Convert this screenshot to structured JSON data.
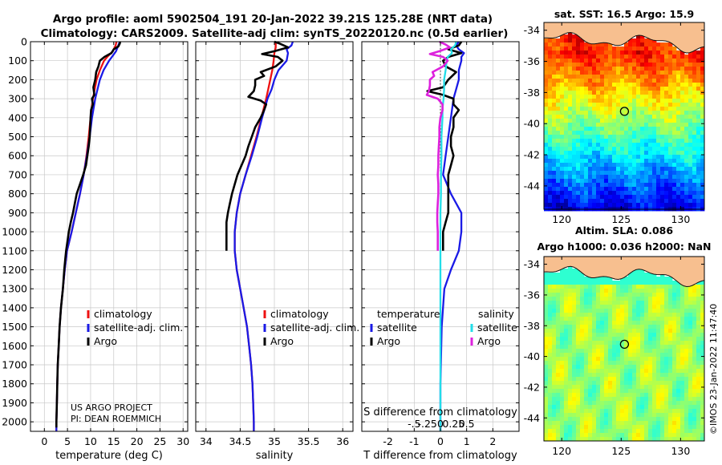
{
  "titles": {
    "line1": "Argo profile: aoml 5902504_191 20-Jan-2022 39.21S 125.28E (NRT data)",
    "line2": "Climatology: CARS2009. Satellite-adj clim: synTS_20220120.nc (0.5d earlier)"
  },
  "credit": {
    "project": "US ARGO PROJECT",
    "pi": "PI: DEAN ROEMMICH",
    "imos": "©IMOS 23-Jan-2022 11:47:40"
  },
  "colors": {
    "climatology": "#ee1111",
    "satellite": "#1a1ae6",
    "argo": "#000000",
    "sat_salinity": "#22dde8",
    "argo_salinity": "#dd22dd"
  },
  "depth_ticks": [
    0,
    100,
    200,
    300,
    400,
    500,
    600,
    700,
    800,
    900,
    1000,
    1100,
    1200,
    1300,
    1400,
    1500,
    1600,
    1700,
    1800,
    1900,
    2000
  ],
  "chart_data": [
    {
      "type": "line",
      "id": "temperature",
      "xlabel": "temperature (deg C)",
      "ylabel": "depth",
      "xlim": [
        -3,
        31
      ],
      "ylim": [
        2050,
        0
      ],
      "xticks": [
        0,
        5,
        10,
        15,
        20,
        25,
        30
      ],
      "legend": [
        "climatology",
        "satellite-adj. clim.",
        "Argo"
      ],
      "series": [
        {
          "name": "climatology",
          "color_key": "climatology",
          "depth": [
            0,
            20,
            50,
            80,
            100,
            150,
            200,
            300,
            400,
            500,
            600,
            700,
            800,
            900,
            1000,
            1100,
            1200,
            1300,
            1400,
            1500,
            1600,
            1700,
            1800,
            1900,
            2000,
            2050
          ],
          "values": [
            15.6,
            15.4,
            14.8,
            13.6,
            12.9,
            12.0,
            11.3,
            10.5,
            10.0,
            9.6,
            9.1,
            8.5,
            7.7,
            6.8,
            5.9,
            4.9,
            4.4,
            4.0,
            3.6,
            3.3,
            3.1,
            2.9,
            2.8,
            2.7,
            2.6,
            2.6
          ]
        },
        {
          "name": "satellite-adj. clim.",
          "color_key": "satellite",
          "depth": [
            0,
            20,
            50,
            80,
            100,
            150,
            200,
            300,
            400,
            500,
            600,
            700,
            800,
            900,
            1000,
            1100,
            1200,
            1300,
            1400,
            1500,
            1600,
            1700,
            1800,
            1900,
            2000,
            2050
          ],
          "values": [
            16.3,
            16.0,
            15.5,
            14.6,
            14.0,
            12.8,
            12.0,
            11.0,
            10.3,
            9.8,
            9.2,
            8.5,
            7.7,
            6.8,
            5.9,
            4.9,
            4.4,
            4.0,
            3.6,
            3.3,
            3.1,
            2.9,
            2.8,
            2.7,
            2.6,
            2.6
          ]
        },
        {
          "name": "Argo",
          "color_key": "argo",
          "depth": [
            0,
            10,
            25,
            40,
            60,
            80,
            100,
            130,
            160,
            200,
            240,
            280,
            300,
            330,
            360,
            400,
            450,
            500,
            550,
            600,
            650,
            700,
            750,
            800,
            850,
            900,
            950,
            1000,
            1050,
            1100,
            1150,
            1200,
            1300,
            1400,
            1500,
            1600,
            1700,
            1800,
            1900,
            2000,
            2030
          ],
          "values": [
            16.4,
            16.3,
            16.0,
            15.0,
            14.5,
            13.0,
            12.0,
            11.7,
            11.2,
            11.0,
            10.6,
            10.8,
            10.3,
            10.5,
            10.1,
            10.0,
            9.9,
            9.8,
            9.6,
            9.3,
            9.0,
            8.4,
            7.7,
            7.0,
            6.6,
            6.2,
            5.7,
            5.3,
            5.0,
            4.7,
            4.5,
            4.3,
            4.0,
            3.6,
            3.3,
            3.1,
            2.9,
            2.8,
            2.7,
            2.6,
            2.6
          ]
        }
      ]
    },
    {
      "type": "line",
      "id": "salinity",
      "xlabel": "salinity",
      "ylabel": "depth",
      "xlim": [
        33.85,
        36.15
      ],
      "ylim": [
        2050,
        0
      ],
      "xticks": [
        34,
        34.5,
        35,
        35.5,
        36
      ],
      "legend": [
        "climatology",
        "satellite-adj. clim.",
        "Argo"
      ],
      "series": [
        {
          "name": "climatology",
          "color_key": "climatology",
          "depth": [
            0,
            30,
            60,
            100,
            150,
            200,
            300,
            400,
            500,
            600,
            700,
            800,
            900,
            1000,
            1100,
            1200,
            1300,
            1400,
            1500,
            1600,
            1700,
            1800,
            1900,
            2000,
            2050
          ],
          "values": [
            35.02,
            35.02,
            35.0,
            34.99,
            34.97,
            34.94,
            34.88,
            34.81,
            34.74,
            34.66,
            34.58,
            34.5,
            34.45,
            34.42,
            34.42,
            34.45,
            34.5,
            34.55,
            34.6,
            34.63,
            34.66,
            34.68,
            34.69,
            34.7,
            34.7
          ]
        },
        {
          "name": "satellite-adj. clim.",
          "color_key": "satellite",
          "depth": [
            0,
            20,
            40,
            60,
            100,
            150,
            200,
            250,
            300,
            400,
            500,
            600,
            700,
            800,
            900,
            1000,
            1100,
            1200,
            1300,
            1400,
            1500,
            1600,
            1700,
            1800,
            1900,
            2000,
            2050
          ],
          "values": [
            35.27,
            35.25,
            35.18,
            35.2,
            35.18,
            35.06,
            35.0,
            34.96,
            34.9,
            34.82,
            34.75,
            34.67,
            34.58,
            34.5,
            34.45,
            34.42,
            34.42,
            34.45,
            34.5,
            34.55,
            34.6,
            34.63,
            34.66,
            34.68,
            34.69,
            34.7,
            34.7
          ]
        },
        {
          "name": "Argo",
          "color_key": "argo",
          "depth": [
            0,
            10,
            30,
            50,
            65,
            80,
            100,
            130,
            160,
            180,
            200,
            230,
            260,
            290,
            310,
            330,
            360,
            400,
            450,
            500,
            550,
            600,
            650,
            700,
            750,
            800,
            850,
            900,
            950,
            1000,
            1050,
            1100
          ],
          "values": [
            35.0,
            35.08,
            35.2,
            35.0,
            34.82,
            35.05,
            35.12,
            35.02,
            34.8,
            34.85,
            34.72,
            34.72,
            34.7,
            34.62,
            34.8,
            34.88,
            34.85,
            34.8,
            34.72,
            34.67,
            34.62,
            34.58,
            34.52,
            34.46,
            34.42,
            34.38,
            34.35,
            34.32,
            34.3,
            34.3,
            34.3,
            34.3
          ]
        }
      ]
    },
    {
      "type": "line",
      "id": "difference",
      "xlabel": "T difference from climatology",
      "xlabel_top": "S difference from climatology",
      "ylabel": "depth",
      "xlim": [
        -3,
        3
      ],
      "ylim": [
        2050,
        0
      ],
      "xticks": [
        -2,
        -1,
        0,
        1,
        2
      ],
      "sticks": [
        -0.5,
        -0.25,
        0,
        0.25,
        0.5
      ],
      "s_scale": 2,
      "legend_temperature_title": "temperature",
      "legend_salinity_title": "salinity",
      "legend_temperature": [
        "satellite",
        "Argo"
      ],
      "legend_salinity": [
        "satellite",
        "Argo"
      ],
      "series": [
        {
          "name": "T satellite",
          "color_key": "satellite",
          "depth": [
            0,
            20,
            40,
            60,
            80,
            100,
            150,
            200,
            250,
            300,
            400,
            500,
            600,
            700,
            800,
            900,
            1000,
            1100,
            1200,
            1300,
            1500,
            1800,
            2000,
            2050
          ],
          "values": [
            0.7,
            0.6,
            0.7,
            0.9,
            0.8,
            0.8,
            0.7,
            0.7,
            0.6,
            0.5,
            0.4,
            0.3,
            0.2,
            0.1,
            0.4,
            0.8,
            0.8,
            0.7,
            0.4,
            0.15,
            0.05,
            0.0,
            0.0,
            0.0
          ]
        },
        {
          "name": "T Argo",
          "color_key": "argo",
          "depth": [
            0,
            20,
            40,
            60,
            80,
            100,
            130,
            160,
            200,
            240,
            260,
            280,
            300,
            330,
            360,
            400,
            450,
            500,
            550,
            600,
            650,
            700,
            750,
            800,
            850,
            900,
            950,
            1000,
            1050,
            1100
          ],
          "values": [
            0.8,
            0.7,
            0.3,
            0.8,
            0.3,
            0.1,
            0.2,
            0.6,
            0.3,
            0.1,
            -0.5,
            0.1,
            0.5,
            0.5,
            0.7,
            0.5,
            0.5,
            0.4,
            0.4,
            0.5,
            0.4,
            0.3,
            0.3,
            0.3,
            0.3,
            0.3,
            0.2,
            0.1,
            0.1,
            0.1
          ]
        },
        {
          "name": "S satellite",
          "color_key": "sat_salinity",
          "depth": [
            0,
            20,
            40,
            60,
            80,
            100,
            150,
            200,
            250,
            300,
            350,
            400,
            500,
            600,
            700,
            800,
            900,
            1000,
            1100,
            1200,
            1400,
            1600,
            1800,
            2000,
            2050
          ],
          "values": [
            0.3,
            0.28,
            0.2,
            0.22,
            0.14,
            0.12,
            0.1,
            0.07,
            0.07,
            0.06,
            0.04,
            0.04,
            0.02,
            0.02,
            0.01,
            0.01,
            0.0,
            0.0,
            0.0,
            0.0,
            0.0,
            0.0,
            0.0,
            0.0,
            0.0
          ]
        },
        {
          "name": "S Argo",
          "color_key": "argo_salinity",
          "depth": [
            0,
            15,
            30,
            50,
            65,
            80,
            100,
            130,
            160,
            180,
            200,
            230,
            260,
            280,
            300,
            330,
            360,
            400,
            450,
            500,
            550,
            600,
            650,
            700,
            750,
            800,
            850,
            900,
            950,
            1000,
            1050,
            1100
          ],
          "values": [
            -0.02,
            0.1,
            0.18,
            -0.02,
            -0.2,
            0.05,
            0.14,
            0.05,
            -0.15,
            -0.12,
            -0.2,
            -0.2,
            -0.22,
            -0.26,
            -0.05,
            0.04,
            0.04,
            0.0,
            -0.02,
            -0.02,
            -0.03,
            -0.04,
            -0.04,
            -0.05,
            -0.04,
            -0.04,
            -0.05,
            -0.06,
            -0.06,
            -0.05,
            -0.05,
            -0.05
          ]
        }
      ]
    },
    {
      "type": "heatmap",
      "id": "sst-map",
      "title": "sat. SST: 16.5 Argo: 15.9",
      "xlim": [
        118.5,
        132
      ],
      "ylim": [
        -45.5,
        -33.5
      ],
      "xticks": [
        120,
        125,
        130
      ],
      "yticks": [
        -34,
        -36,
        -38,
        -40,
        -42,
        -44
      ],
      "profile_location": {
        "lon": 125.28,
        "lat": -39.21
      }
    },
    {
      "type": "heatmap",
      "id": "sla-map",
      "title_line1": "Altim. SLA: 0.086",
      "title_line2": "Argo h1000: 0.036 h2000: NaN",
      "xlim": [
        118.5,
        132
      ],
      "ylim": [
        -45.5,
        -33.5
      ],
      "xticks": [
        120,
        125,
        130
      ],
      "yticks": [
        -34,
        -36,
        -38,
        -40,
        -42,
        -44
      ],
      "profile_location": {
        "lon": 125.28,
        "lat": -39.21
      }
    }
  ]
}
